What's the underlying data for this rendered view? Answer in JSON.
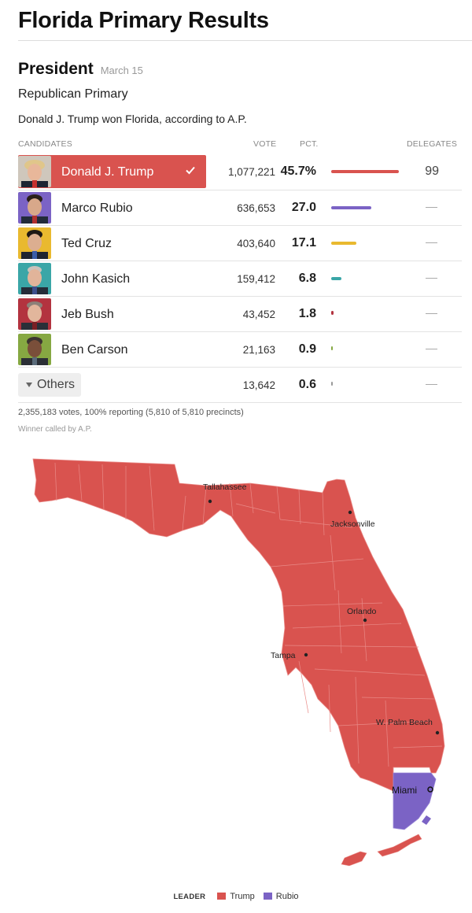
{
  "header": {
    "title": "Florida Primary Results"
  },
  "race": {
    "office": "President",
    "date": "March 15",
    "type": "Republican Primary",
    "summary": "Donald J. Trump won Florida, according to A.P."
  },
  "table": {
    "columns": {
      "candidates": "CANDIDATES",
      "vote": "VOTE",
      "pct": "PCT.",
      "delegates": "DELEGATES"
    },
    "rows": [
      {
        "name": "Donald J. Trump",
        "vote": "1,077,221",
        "pct": "45.7%",
        "pct_value": 45.7,
        "delegates": "99",
        "color": "#d9534f",
        "winner": true
      },
      {
        "name": "Marco Rubio",
        "vote": "636,653",
        "pct": "27.0",
        "pct_value": 27.0,
        "delegates": "",
        "color": "#7b63c5"
      },
      {
        "name": "Ted Cruz",
        "vote": "403,640",
        "pct": "17.1",
        "pct_value": 17.1,
        "delegates": "",
        "color": "#e9b92f"
      },
      {
        "name": "John Kasich",
        "vote": "159,412",
        "pct": "6.8",
        "pct_value": 6.8,
        "delegates": "",
        "color": "#3aa6a7"
      },
      {
        "name": "Jeb Bush",
        "vote": "43,452",
        "pct": "1.8",
        "pct_value": 1.8,
        "delegates": "",
        "color": "#b3333f"
      },
      {
        "name": "Ben Carson",
        "vote": "21,163",
        "pct": "0.9",
        "pct_value": 0.9,
        "delegates": "",
        "color": "#86a842"
      }
    ],
    "others": {
      "label": "Others",
      "vote": "13,642",
      "pct": "0.6",
      "pct_value": 0.6,
      "color": "#999999"
    }
  },
  "reporting": "2,355,183 votes, 100% reporting (5,810 of 5,810 precincts)",
  "called_by": "Winner called by A.P.",
  "map": {
    "leader_colors": {
      "trump": "#d9534f",
      "rubio": "#7b63c5"
    },
    "cities": {
      "tallahassee": "Tallahassee",
      "jacksonville": "Jacksonville",
      "orlando": "Orlando",
      "tampa": "Tampa",
      "west_palm_beach": "W. Palm Beach",
      "miami": "Miami"
    }
  },
  "legend": {
    "title": "LEADER",
    "trump": "Trump",
    "rubio": "Rubio"
  }
}
